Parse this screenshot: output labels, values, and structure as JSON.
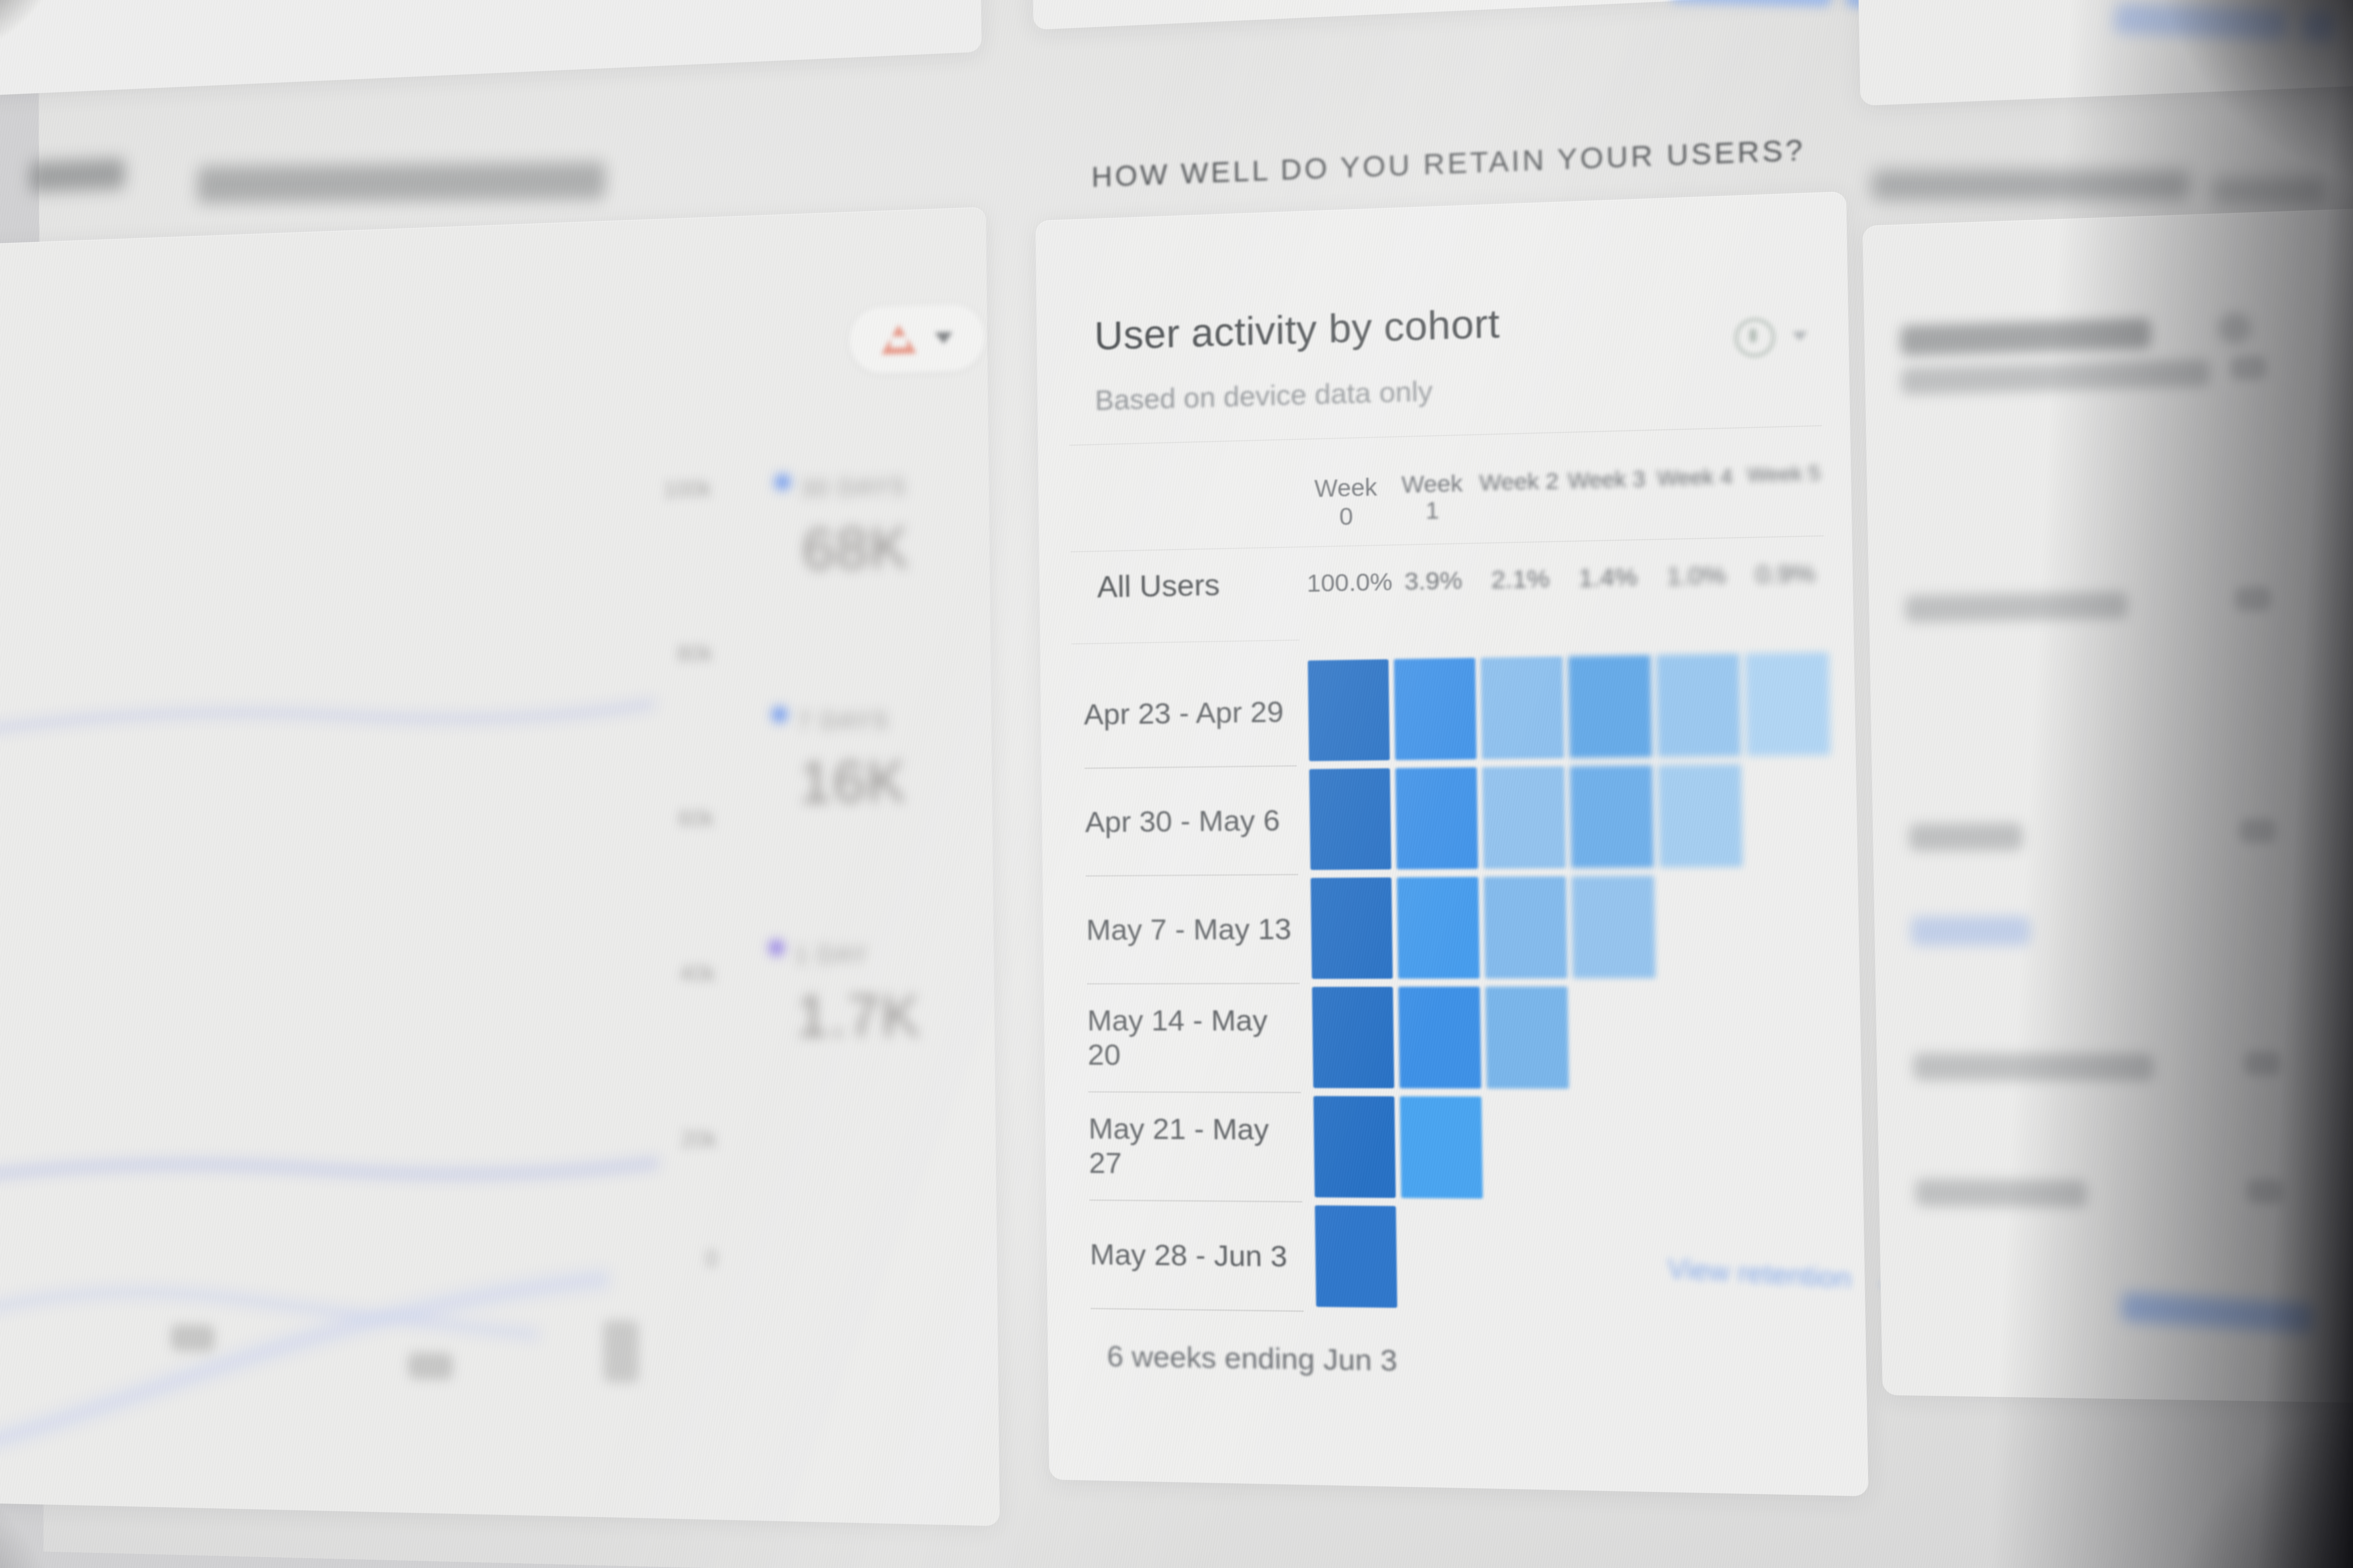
{
  "page": {
    "section_header": "HOW WELL DO YOU RETAIN YOUR USERS?"
  },
  "left_card": {
    "alert_icon": "warning-triangle",
    "metrics": [
      {
        "dot_color": "#5b8df2",
        "label": "30 DAYS",
        "value": "68K"
      },
      {
        "dot_color": "#5b8df2",
        "label": "7 DAYS",
        "value": "16K"
      },
      {
        "dot_color": "#8a74e8",
        "label": "1 DAY",
        "value": "1.7K"
      }
    ],
    "y_axis_labels": [
      "100k",
      "80k",
      "60k",
      "40k",
      "20k",
      "0"
    ]
  },
  "cohort_card": {
    "title": "User activity by cohort",
    "subtitle": "Based on device data only",
    "week_headers": [
      "Week 0",
      "Week 1",
      "Week 2",
      "Week 3",
      "Week 4",
      "Week 5"
    ],
    "all_users_label": "All Users",
    "all_users_values": [
      "100.0%",
      "3.9%",
      "2.1%",
      "1.4%",
      "1.0%",
      "0.9%"
    ],
    "rows": [
      {
        "label": "Apr 23 - Apr 29",
        "cells": [
          "#1163c1",
          "#2e8ae9",
          "#84bcef",
          "#58a4e9",
          "#93c5f1",
          "#abd3f5"
        ]
      },
      {
        "label": "Apr 30 - May 6",
        "cells": [
          "#1163c1",
          "#2e8ae9",
          "#8abfef",
          "#63aaeb",
          "#9ecbf2"
        ]
      },
      {
        "label": "May 7 - May 13",
        "cells": [
          "#1163c1",
          "#3494ee",
          "#79b6ed",
          "#8cc0ef"
        ]
      },
      {
        "label": "May 14 - May 20",
        "cells": [
          "#1163c1",
          "#2a87e7",
          "#6db0eb"
        ]
      },
      {
        "label": "May 21 - May 27",
        "cells": [
          "#1163c1",
          "#379df2"
        ]
      },
      {
        "label": "May 28 - Jun 3",
        "cells": [
          "#1a6ac8"
        ]
      }
    ],
    "footnote": "6 weeks ending Jun 3",
    "view_link": {
      "label": "View retention",
      "arrow": "→"
    }
  },
  "chart_data": {
    "type": "heatmap",
    "title": "User activity by cohort",
    "x": [
      "Week 0",
      "Week 1",
      "Week 2",
      "Week 3",
      "Week 4",
      "Week 5"
    ],
    "categories": [
      "Apr 23 - Apr 29",
      "Apr 30 - May 6",
      "May 7 - May 13",
      "May 14 - May 20",
      "May 21 - May 27",
      "May 28 - Jun 3"
    ],
    "all_users_retention_pct": [
      100.0,
      3.9,
      2.1,
      1.4,
      1.0,
      0.9
    ],
    "cells_present": [
      6,
      5,
      4,
      3,
      2,
      1
    ],
    "active_users_summary": {
      "30_days": "68K",
      "7_days": "16K",
      "1_day": "1.7K"
    },
    "summary_axis_range": [
      "0",
      "100k"
    ]
  }
}
